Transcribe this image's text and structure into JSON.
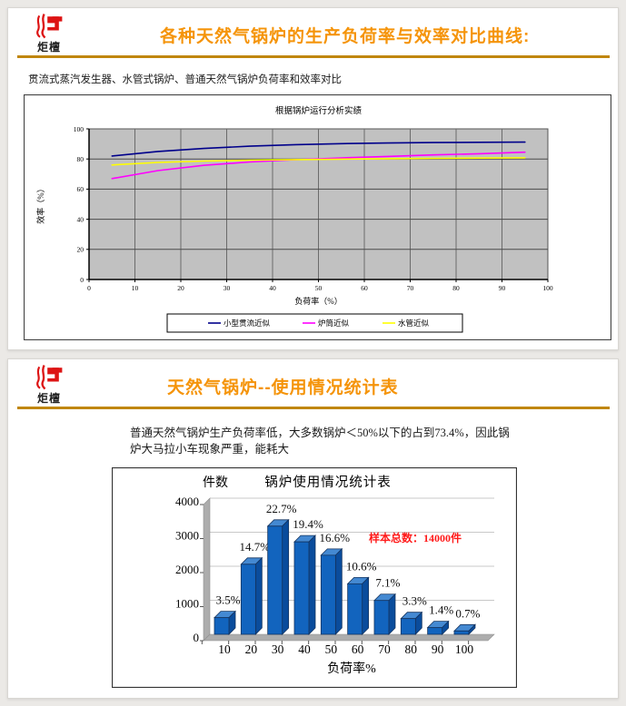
{
  "logo": {
    "brand_text": "炬檀"
  },
  "colors": {
    "title_orange": "#F5940A",
    "divider_gold": "#C0860B",
    "logo_red": "#DD1414",
    "annotation_red": "#FF1A1A",
    "plot_gray": "#C1C1C1",
    "wall_gray": "#ADADAD",
    "bar_front": "#1264BE",
    "bar_top": "#4489D2",
    "bar_side": "#0A4C9C",
    "bar_outline": "#13335F"
  },
  "slide1": {
    "title": "各种天然气锅炉的生产负荷率与效率对比曲线:",
    "subtitle": "贯流式蒸汽发生器、水管式锅炉、普通天然气锅炉负荷率和效率对比"
  },
  "slide2": {
    "title": "天然气锅炉--使用情况统计表",
    "body_line1": "普通天然气锅炉生产负荷率低，大多数锅炉＜50%以下的占到73.4%，因此锅",
    "body_line2": "炉大马拉小车现象严重，能耗大"
  },
  "chart_data": [
    {
      "type": "line",
      "title": "根据锅炉运行分析实绩",
      "xlabel": "负荷率（%）",
      "ylabel": "效率（%）",
      "xlim": [
        0,
        100
      ],
      "ylim": [
        0,
        100
      ],
      "x_ticks": [
        0,
        10,
        20,
        30,
        40,
        50,
        60,
        70,
        80,
        90,
        100
      ],
      "y_ticks": [
        0,
        20,
        40,
        60,
        80,
        100
      ],
      "grid": true,
      "plot_bg": "#C1C1C1",
      "legend_position": "bottom",
      "x": [
        5,
        15,
        25,
        35,
        45,
        55,
        65,
        75,
        85,
        95
      ],
      "series": [
        {
          "name": "小型贯流近似",
          "color": "#00008B",
          "values": [
            82,
            85,
            87,
            88.5,
            89.5,
            90.2,
            90.6,
            90.9,
            91.1,
            91.2
          ]
        },
        {
          "name": "炉筒近似",
          "color": "#FF00FF",
          "values": [
            67,
            72.3,
            75.8,
            78,
            79.5,
            80.7,
            81.7,
            82.7,
            83.5,
            84.5
          ]
        },
        {
          "name": "水管近似",
          "color": "#FFFF00",
          "values": [
            76,
            77.7,
            78.6,
            79.2,
            79.6,
            79.9,
            80.2,
            80.4,
            80.6,
            80.8
          ]
        }
      ]
    },
    {
      "type": "bar",
      "title": "锅炉使用情况统计表",
      "ylabel": "件数",
      "xlabel": "负荷率%",
      "categories": [
        "10",
        "20",
        "30",
        "40",
        "50",
        "60",
        "70",
        "80",
        "90",
        "100"
      ],
      "values": [
        490,
        2058,
        3178,
        2716,
        2324,
        1484,
        994,
        462,
        196,
        98
      ],
      "labels": [
        "3.5%",
        "14.7%",
        "22.7%",
        "19.4%",
        "16.6%",
        "10.6%",
        "7.1%",
        "3.3%",
        "1.4%",
        "0.7%"
      ],
      "annotation": "样本总数：14000件",
      "ylim": [
        0,
        4000
      ],
      "y_ticks": [
        0,
        1000,
        2000,
        3000,
        4000
      ],
      "grid": true
    }
  ]
}
